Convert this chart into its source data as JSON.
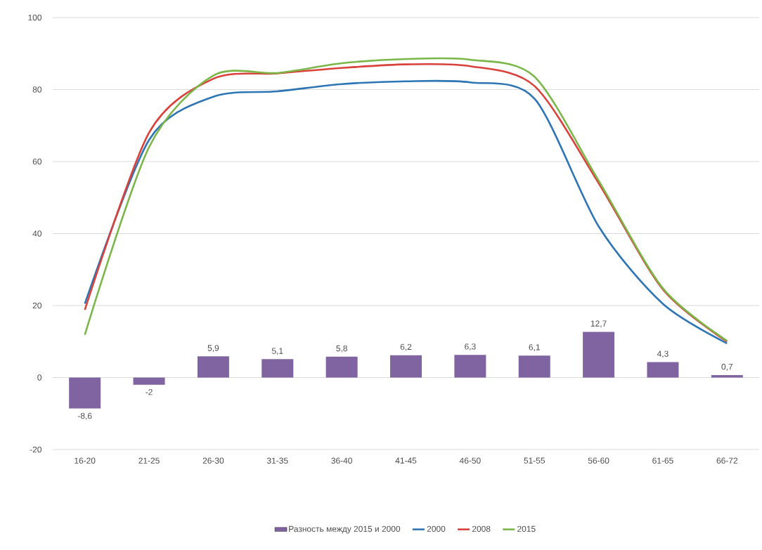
{
  "chart_data": {
    "type": "line",
    "categories": [
      "16-20",
      "21-25",
      "26-30",
      "31-35",
      "36-40",
      "41-45",
      "46-50",
      "51-55",
      "56-60",
      "61-65",
      "66-72"
    ],
    "series": [
      {
        "name": "Разность между 2015 и 2000",
        "type": "bar",
        "color": "#8064a2",
        "values": [
          -8.6,
          -2,
          5.9,
          5.1,
          5.8,
          6.2,
          6.3,
          6.1,
          12.7,
          4.3,
          0.7
        ],
        "value_labels": [
          "-8,6",
          "-2",
          "5,9",
          "5,1",
          "5,8",
          "6,2",
          "6,3",
          "6,1",
          "12,7",
          "4,3",
          "0,7"
        ]
      },
      {
        "name": "2000",
        "color": "#2e75b6",
        "values": [
          20.5,
          66,
          78,
          79.5,
          81.5,
          82.3,
          82,
          77.5,
          42,
          20.5,
          9.5
        ]
      },
      {
        "name": "2008",
        "color": "#d9413a",
        "values": [
          18.8,
          68,
          83,
          84.5,
          86,
          87,
          86.5,
          81,
          54,
          24.5,
          10
        ]
      },
      {
        "name": "2015",
        "color": "#7ab648",
        "values": [
          11.9,
          64,
          83.9,
          84.6,
          87.3,
          88.5,
          88.3,
          83.6,
          54.7,
          24.8,
          10.2
        ]
      }
    ],
    "ylim": [
      -20,
      100
    ],
    "yticks": [
      -20,
      0,
      20,
      40,
      60,
      80,
      100
    ],
    "grid": "y",
    "legend": "bottom",
    "marker": "none"
  }
}
